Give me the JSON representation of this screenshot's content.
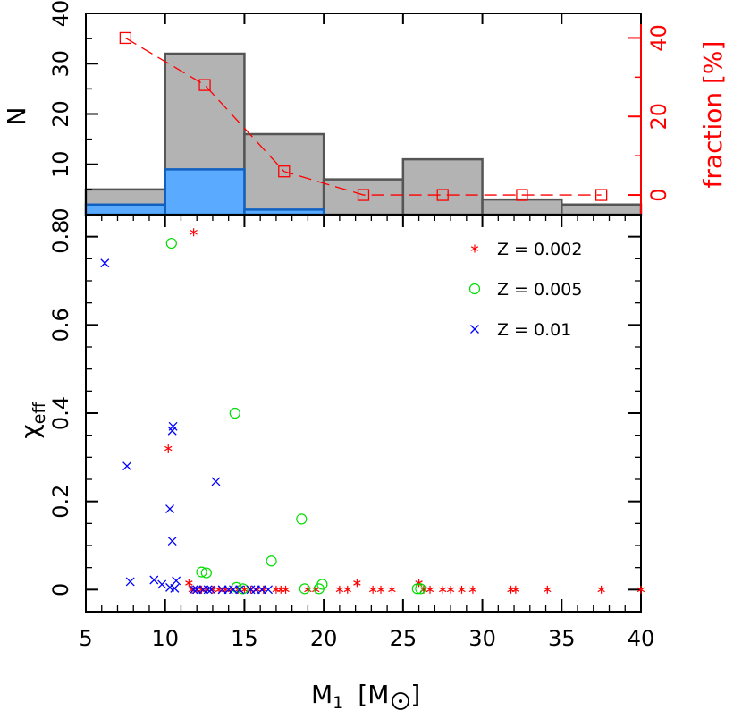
{
  "chart_data": [
    {
      "panel": "top",
      "type": "bar",
      "ylabel": "N",
      "y2label": "fraction [%]",
      "ylim": [
        0,
        40
      ],
      "y2lim": [
        -5,
        46.25
      ],
      "y_ticks": [
        0,
        10,
        20,
        30,
        40
      ],
      "y2_ticks": [
        0,
        20,
        40
      ],
      "bin_edges": [
        5,
        10,
        15,
        20,
        25,
        30,
        35,
        40
      ],
      "series": [
        {
          "values": [
            5,
            32,
            16,
            7,
            11,
            3,
            2
          ]
        },
        {
          "values": [
            2,
            9,
            1,
            0,
            0,
            0,
            0
          ]
        }
      ],
      "fraction_line": {
        "x": [
          7.5,
          12.5,
          17.5,
          22.5,
          27.5,
          32.5,
          37.5
        ],
        "values": [
          40,
          28,
          6,
          0,
          0,
          0,
          0
        ]
      },
      "colors": {
        "total": "#b3b3b3",
        "merging": "#5aabff",
        "fraction": "#ff0000"
      }
    },
    {
      "panel": "bottom",
      "type": "scatter",
      "xlabel": "M",
      "xlabel_sub": "1",
      "xlabel_unit_open": "[M",
      "xlabel_unit_close": "]",
      "ylabel": "χ",
      "ylabel_sub": "eff",
      "xlim": [
        5,
        40
      ],
      "ylim": [
        -0.05,
        0.85
      ],
      "x_ticks": [
        5,
        10,
        15,
        20,
        25,
        30,
        35,
        40
      ],
      "y_ticks": [
        0,
        0.2,
        0.4,
        0.6,
        0.8
      ],
      "y_tick_labels": [
        "0",
        "0.2",
        "0.4",
        "0.6",
        "0.8"
      ],
      "series": [
        {
          "name": "Z = 0.002",
          "marker": "star",
          "color": "#ff0000",
          "points": [
            [
              11.8,
              0.81
            ],
            [
              10.2,
              0.32
            ],
            [
              22.1,
              0.015
            ],
            [
              26.0,
              0.015
            ],
            [
              11.5,
              0.015
            ],
            [
              11.7,
              0
            ],
            [
              12.0,
              0
            ],
            [
              12.3,
              0
            ],
            [
              12.6,
              0
            ],
            [
              13.0,
              0
            ],
            [
              13.4,
              0
            ],
            [
              13.8,
              0
            ],
            [
              14.2,
              0
            ],
            [
              14.6,
              0
            ],
            [
              15.0,
              0
            ],
            [
              15.4,
              0
            ],
            [
              15.8,
              0
            ],
            [
              16.2,
              0
            ],
            [
              17.0,
              0
            ],
            [
              17.3,
              0
            ],
            [
              17.6,
              0
            ],
            [
              19.0,
              0
            ],
            [
              19.5,
              0
            ],
            [
              21.0,
              0
            ],
            [
              21.5,
              0
            ],
            [
              23.1,
              0
            ],
            [
              23.6,
              0
            ],
            [
              24.3,
              0
            ],
            [
              26.3,
              0
            ],
            [
              26.7,
              0
            ],
            [
              27.5,
              0
            ],
            [
              28.0,
              0
            ],
            [
              28.7,
              0
            ],
            [
              29.4,
              0
            ],
            [
              31.8,
              0
            ],
            [
              32.1,
              0
            ],
            [
              34.1,
              0
            ],
            [
              37.5,
              0
            ],
            [
              40.0,
              0
            ]
          ]
        },
        {
          "name": "Z = 0.005",
          "marker": "circle",
          "color": "#00dd00",
          "points": [
            [
              10.4,
              0.785
            ],
            [
              14.4,
              0.4
            ],
            [
              18.6,
              0.16
            ],
            [
              16.7,
              0.065
            ],
            [
              12.3,
              0.04
            ],
            [
              12.6,
              0.038
            ],
            [
              19.9,
              0.012
            ],
            [
              14.5,
              0.005
            ],
            [
              18.8,
              0.002
            ],
            [
              19.7,
              0.002
            ],
            [
              14.9,
              0.002
            ],
            [
              25.9,
              0.002
            ],
            [
              26.1,
              0.002
            ]
          ]
        },
        {
          "name": "Z = 0.01",
          "marker": "x",
          "color": "#0000ff",
          "points": [
            [
              6.2,
              0.74
            ],
            [
              10.5,
              0.37
            ],
            [
              10.45,
              0.36
            ],
            [
              7.6,
              0.28
            ],
            [
              13.2,
              0.245
            ],
            [
              10.3,
              0.183
            ],
            [
              10.45,
              0.11
            ],
            [
              7.8,
              0.018
            ],
            [
              9.3,
              0.022
            ],
            [
              9.8,
              0.012
            ],
            [
              10.3,
              0.005
            ],
            [
              10.7,
              0.02
            ],
            [
              10.6,
              0.003
            ],
            [
              11.8,
              0
            ],
            [
              12.0,
              0
            ],
            [
              12.4,
              0
            ],
            [
              12.7,
              0
            ],
            [
              12.9,
              0
            ],
            [
              13.6,
              0
            ],
            [
              14.0,
              0
            ],
            [
              14.3,
              0
            ],
            [
              14.7,
              0
            ],
            [
              15.4,
              0
            ],
            [
              15.7,
              0
            ],
            [
              16.1,
              0
            ],
            [
              16.5,
              0
            ]
          ]
        }
      ],
      "legend_position": "top-right"
    }
  ]
}
